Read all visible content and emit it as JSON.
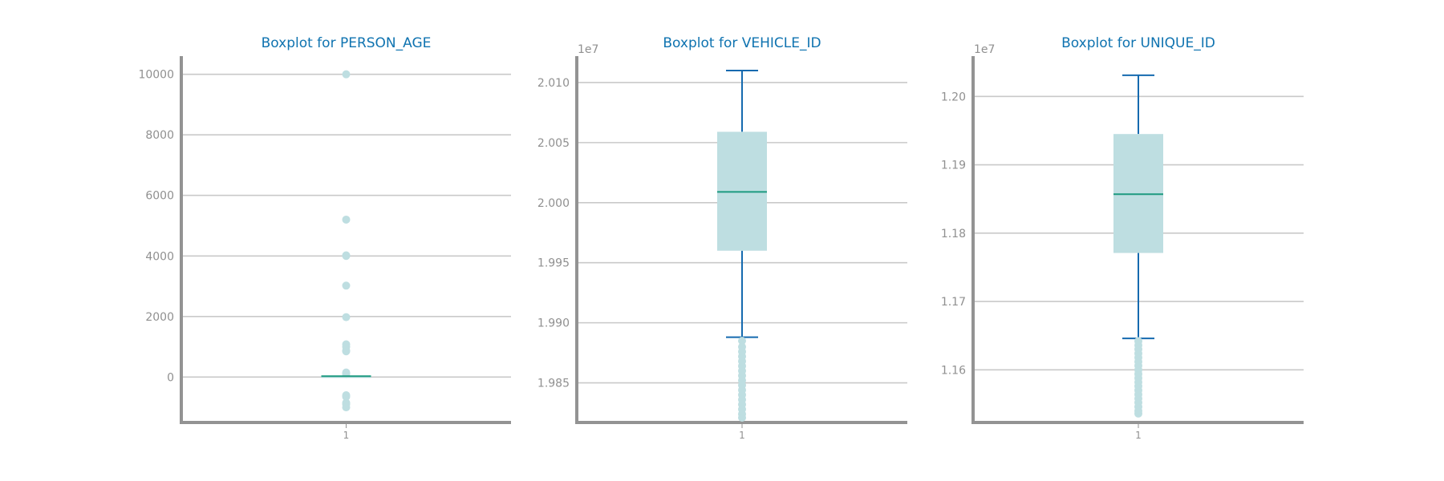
{
  "colors": {
    "title": "#0f73b0",
    "tick_label": "#909090",
    "axis": "#939393",
    "grid": "#c9c9c9",
    "box_fill": "#bedee1",
    "median": "#1d9a80",
    "whisker": "#156aaf",
    "flier": "#bedee1"
  },
  "chart_data": [
    {
      "type": "box",
      "title": "Boxplot for PERSON_AGE",
      "xlabel": "",
      "ylabel": "",
      "offset_text": "",
      "categories": [
        "1"
      ],
      "ylim": [
        -1500,
        10600
      ],
      "yticks": [
        0,
        2000,
        4000,
        6000,
        8000,
        10000
      ],
      "ytick_labels": [
        "0",
        "2000",
        "4000",
        "6000",
        "8000",
        "10000"
      ],
      "grid": "y",
      "box": {
        "q1": 0,
        "median": 30,
        "q3": 50,
        "whisker_low": 0,
        "whisker_high": 100,
        "draw_whisker_caps": false
      },
      "fliers": [
        10000,
        5200,
        4020,
        4000,
        3020,
        1980,
        1080,
        1000,
        880,
        850,
        150,
        120,
        100,
        -600,
        -650,
        -850,
        -900,
        -1000
      ]
    },
    {
      "type": "box",
      "title": "Boxplot for VEHICLE_ID",
      "xlabel": "",
      "ylabel": "",
      "offset_text": "1e7",
      "categories": [
        "1"
      ],
      "ylim": [
        1.9817,
        2.0122
      ],
      "yticks": [
        1.985,
        1.99,
        1.995,
        2.0,
        2.005,
        2.01
      ],
      "ytick_labels": [
        "1.985",
        "1.990",
        "1.995",
        "2.000",
        "2.005",
        "2.010"
      ],
      "grid": "y",
      "box": {
        "q1": 1.996,
        "median": 2.0009,
        "q3": 2.0059,
        "whisker_low": 1.9888,
        "whisker_high": 2.011,
        "draw_whisker_caps": true
      },
      "fliers": [
        1.9885,
        1.988,
        1.9876,
        1.9872,
        1.9868,
        1.9864,
        1.986,
        1.9856,
        1.9852,
        1.9848,
        1.9844,
        1.984,
        1.9836,
        1.9832,
        1.9828,
        1.9824,
        1.9821
      ]
    },
    {
      "type": "box",
      "title": "Boxplot for UNIQUE_ID",
      "xlabel": "",
      "ylabel": "",
      "offset_text": "1e7",
      "categories": [
        "1"
      ],
      "ylim": [
        1.1523,
        1.2059
      ],
      "yticks": [
        1.16,
        1.17,
        1.18,
        1.19,
        1.2
      ],
      "ytick_labels": [
        "1.16",
        "1.17",
        "1.18",
        "1.19",
        "1.20"
      ],
      "grid": "y",
      "box": {
        "q1": 1.1771,
        "median": 1.1857,
        "q3": 1.1945,
        "whisker_low": 1.1646,
        "whisker_high": 1.2031,
        "draw_whisker_caps": true
      },
      "fliers": [
        1.1642,
        1.1636,
        1.163,
        1.1624,
        1.1618,
        1.1612,
        1.1606,
        1.16,
        1.1594,
        1.1588,
        1.1582,
        1.1576,
        1.157,
        1.1564,
        1.1558,
        1.1552,
        1.1546,
        1.154,
        1.1536
      ]
    }
  ]
}
